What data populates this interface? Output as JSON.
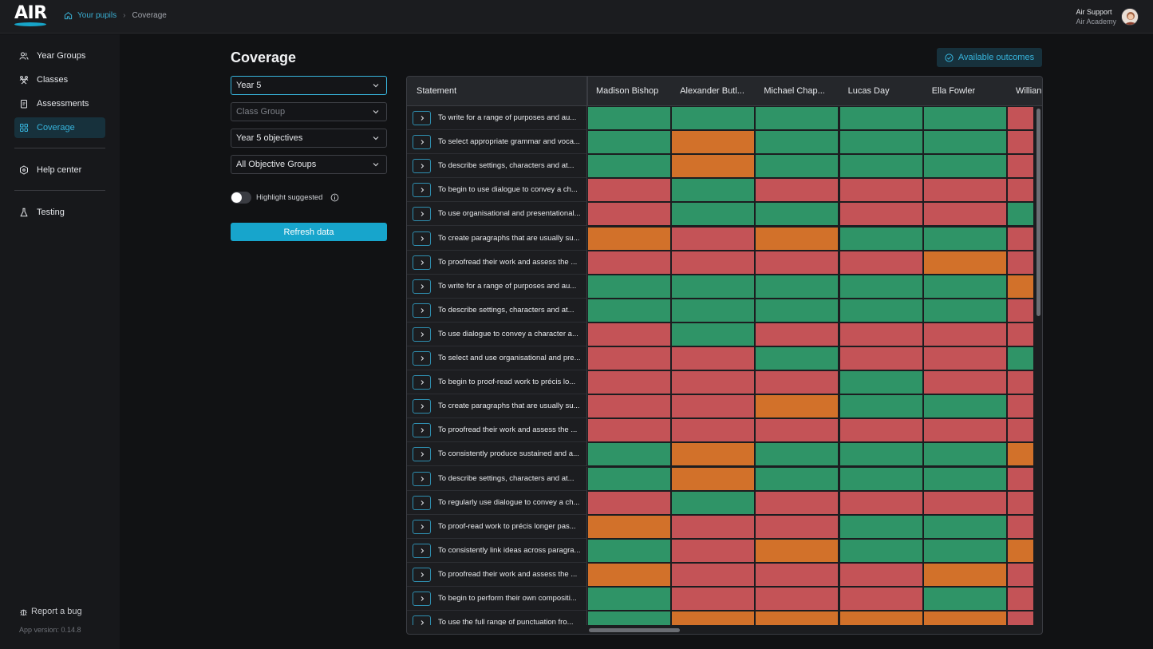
{
  "app": {
    "logo_text": "AIR"
  },
  "breadcrumb": {
    "home_label": "Your pupils",
    "current": "Coverage"
  },
  "user": {
    "name": "Air Support",
    "org": "Air Academy"
  },
  "sidebar": {
    "items": [
      {
        "label": "Year Groups",
        "icon": "users-icon"
      },
      {
        "label": "Classes",
        "icon": "group-icon"
      },
      {
        "label": "Assessments",
        "icon": "clipboard-icon"
      },
      {
        "label": "Coverage",
        "icon": "grid-icon",
        "active": true
      }
    ],
    "help_label": "Help center",
    "testing_label": "Testing",
    "report_label": "Report a bug",
    "version_label": "App version: 0.14.8"
  },
  "page": {
    "title": "Coverage",
    "available_outcomes_label": "Available outcomes"
  },
  "filters": {
    "year_group": "Year 5",
    "class_group_placeholder": "Class Group",
    "objectives": "Year 5 objectives",
    "objective_groups": "All Objective Groups",
    "highlight_label": "Highlight suggested",
    "refresh_label": "Refresh data"
  },
  "colors": {
    "green": "#2f9467",
    "red": "#c45357",
    "orange": "#d2712a",
    "accent": "#17a5cc"
  },
  "grid": {
    "statement_header": "Statement",
    "pupils": [
      "Madison Bishop",
      "Alexander Butl...",
      "Michael Chap...",
      "Lucas Day",
      "Ella Fowler",
      "Willian"
    ],
    "rows": [
      {
        "statement": "To write for a range of purposes and au...",
        "cells": [
          "g",
          "g",
          "g",
          "g",
          "g",
          "r"
        ]
      },
      {
        "statement": "To select appropriate grammar and voca...",
        "cells": [
          "g",
          "o",
          "g",
          "g",
          "g",
          "r"
        ]
      },
      {
        "statement": "To describe settings, characters and at...",
        "cells": [
          "g",
          "o",
          "g",
          "g",
          "g",
          "r"
        ]
      },
      {
        "statement": "To begin to use dialogue to convey a ch...",
        "cells": [
          "r",
          "g",
          "r",
          "r",
          "r",
          "r"
        ]
      },
      {
        "statement": "To use organisational and presentational...",
        "cells": [
          "r",
          "g",
          "g",
          "r",
          "r",
          "g"
        ]
      },
      {
        "statement": "To create paragraphs that are usually su...",
        "cells": [
          "o",
          "r",
          "o",
          "g",
          "g",
          "r"
        ]
      },
      {
        "statement": "To proofread their work and assess the ...",
        "cells": [
          "r",
          "r",
          "r",
          "r",
          "o",
          "r"
        ]
      },
      {
        "statement": "To write for a range of purposes and au...",
        "cells": [
          "g",
          "g",
          "g",
          "g",
          "g",
          "o"
        ]
      },
      {
        "statement": "To describe settings, characters and at...",
        "cells": [
          "g",
          "g",
          "g",
          "g",
          "g",
          "r"
        ]
      },
      {
        "statement": "To use dialogue to convey a character a...",
        "cells": [
          "r",
          "g",
          "r",
          "r",
          "r",
          "r"
        ]
      },
      {
        "statement": "To select and use organisational and pre...",
        "cells": [
          "r",
          "r",
          "g",
          "r",
          "r",
          "g"
        ]
      },
      {
        "statement": "To begin to proof-read work to précis lo...",
        "cells": [
          "r",
          "r",
          "r",
          "g",
          "r",
          "r"
        ]
      },
      {
        "statement": "To create paragraphs that are usually su...",
        "cells": [
          "r",
          "r",
          "o",
          "g",
          "g",
          "r"
        ]
      },
      {
        "statement": "To proofread their work and assess the ...",
        "cells": [
          "r",
          "r",
          "r",
          "r",
          "r",
          "r"
        ]
      },
      {
        "statement": "To consistently produce sustained and a...",
        "cells": [
          "g",
          "o",
          "g",
          "g",
          "g",
          "o"
        ]
      },
      {
        "statement": "To describe settings, characters and at...",
        "cells": [
          "g",
          "o",
          "g",
          "g",
          "g",
          "r"
        ]
      },
      {
        "statement": "To regularly use dialogue to convey a ch...",
        "cells": [
          "r",
          "g",
          "r",
          "r",
          "r",
          "r"
        ]
      },
      {
        "statement": "To proof-read work to précis longer pas...",
        "cells": [
          "o",
          "r",
          "r",
          "g",
          "g",
          "r"
        ]
      },
      {
        "statement": "To consistently link ideas across paragra...",
        "cells": [
          "g",
          "r",
          "o",
          "g",
          "g",
          "o"
        ]
      },
      {
        "statement": "To proofread their work and assess the ...",
        "cells": [
          "o",
          "r",
          "r",
          "r",
          "o",
          "r"
        ]
      },
      {
        "statement": "To begin to perform their own compositi...",
        "cells": [
          "g",
          "r",
          "r",
          "r",
          "g",
          "r"
        ]
      },
      {
        "statement": "To use the full range of punctuation fro...",
        "cells": [
          "g",
          "o",
          "o",
          "o",
          "o",
          "r"
        ]
      }
    ]
  }
}
